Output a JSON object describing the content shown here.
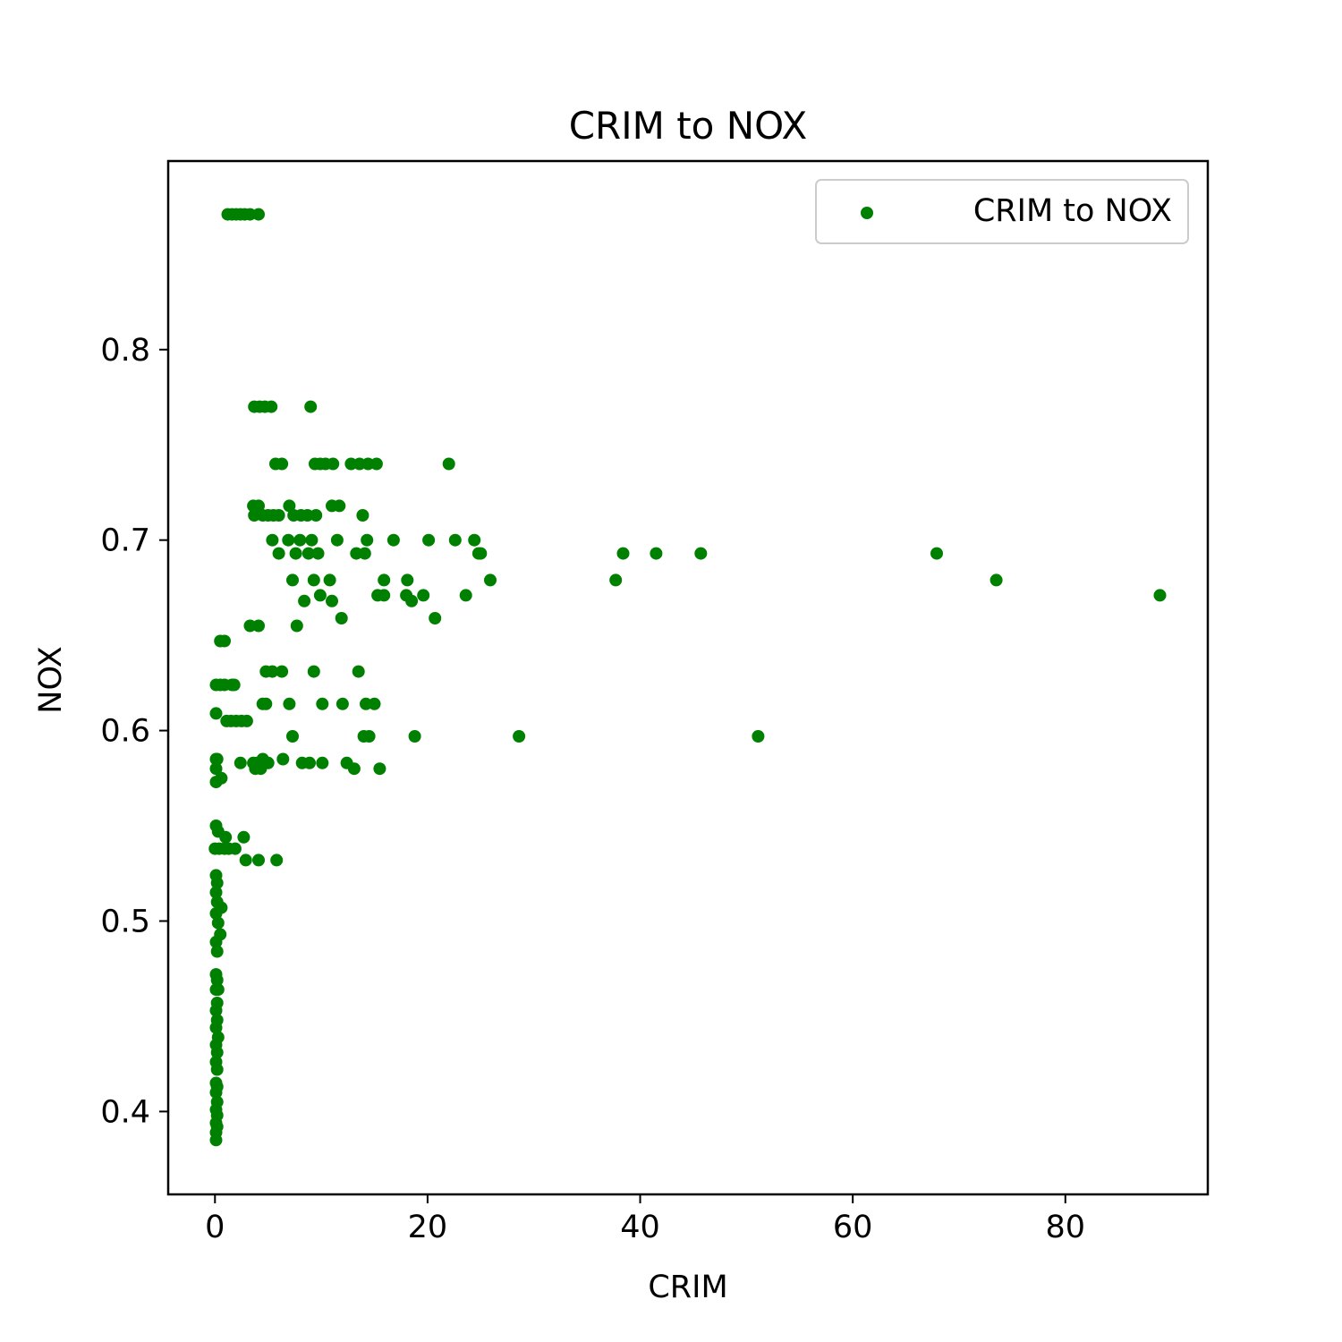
{
  "chart_data": {
    "type": "scatter",
    "title": "CRIM to NOX",
    "xlabel": "CRIM",
    "ylabel": "NOX",
    "xlim": [
      -4.4,
      93.4
    ],
    "ylim": [
      0.3565,
      0.899
    ],
    "xticks": [
      0,
      20,
      40,
      60,
      80
    ],
    "xtick_labels": [
      "0",
      "20",
      "40",
      "60",
      "80"
    ],
    "yticks": [
      0.4,
      0.5,
      0.6,
      0.7,
      0.8
    ],
    "ytick_labels": [
      "0.4",
      "0.5",
      "0.6",
      "0.7",
      "0.8"
    ],
    "grid": false,
    "legend_position": "top-right",
    "series": [
      {
        "name": "CRIM to NOX",
        "color": "#008000",
        "points": [
          [
            1.2,
            0.871
          ],
          [
            1.6,
            0.871
          ],
          [
            2.0,
            0.871
          ],
          [
            2.4,
            0.871
          ],
          [
            2.8,
            0.871
          ],
          [
            3.3,
            0.871
          ],
          [
            4.1,
            0.871
          ],
          [
            3.7,
            0.77
          ],
          [
            4.2,
            0.77
          ],
          [
            4.7,
            0.77
          ],
          [
            5.3,
            0.77
          ],
          [
            9.0,
            0.77
          ],
          [
            5.7,
            0.74
          ],
          [
            6.3,
            0.74
          ],
          [
            9.4,
            0.74
          ],
          [
            9.9,
            0.74
          ],
          [
            10.4,
            0.74
          ],
          [
            11.1,
            0.74
          ],
          [
            12.8,
            0.74
          ],
          [
            13.6,
            0.74
          ],
          [
            14.4,
            0.74
          ],
          [
            15.2,
            0.74
          ],
          [
            22.0,
            0.74
          ],
          [
            3.6,
            0.718
          ],
          [
            4.1,
            0.718
          ],
          [
            7.0,
            0.718
          ],
          [
            11.0,
            0.718
          ],
          [
            11.7,
            0.718
          ],
          [
            3.7,
            0.713
          ],
          [
            4.5,
            0.713
          ],
          [
            5.0,
            0.713
          ],
          [
            5.5,
            0.713
          ],
          [
            6.0,
            0.713
          ],
          [
            7.4,
            0.713
          ],
          [
            8.1,
            0.713
          ],
          [
            8.7,
            0.713
          ],
          [
            9.5,
            0.713
          ],
          [
            13.9,
            0.713
          ],
          [
            5.4,
            0.7
          ],
          [
            6.9,
            0.7
          ],
          [
            8.0,
            0.7
          ],
          [
            9.1,
            0.7
          ],
          [
            11.5,
            0.7
          ],
          [
            14.3,
            0.7
          ],
          [
            16.8,
            0.7
          ],
          [
            20.1,
            0.7
          ],
          [
            22.6,
            0.7
          ],
          [
            24.4,
            0.7
          ],
          [
            6.0,
            0.693
          ],
          [
            7.6,
            0.693
          ],
          [
            8.8,
            0.693
          ],
          [
            9.7,
            0.693
          ],
          [
            13.3,
            0.693
          ],
          [
            14.1,
            0.693
          ],
          [
            24.8,
            0.693
          ],
          [
            25.0,
            0.693
          ],
          [
            38.4,
            0.693
          ],
          [
            41.5,
            0.693
          ],
          [
            45.7,
            0.693
          ],
          [
            67.9,
            0.693
          ],
          [
            7.3,
            0.679
          ],
          [
            9.3,
            0.679
          ],
          [
            10.8,
            0.679
          ],
          [
            15.9,
            0.679
          ],
          [
            18.1,
            0.679
          ],
          [
            25.9,
            0.679
          ],
          [
            37.7,
            0.679
          ],
          [
            73.5,
            0.679
          ],
          [
            9.9,
            0.671
          ],
          [
            15.3,
            0.671
          ],
          [
            15.9,
            0.671
          ],
          [
            18.0,
            0.671
          ],
          [
            19.6,
            0.671
          ],
          [
            23.6,
            0.671
          ],
          [
            88.9,
            0.671
          ],
          [
            8.4,
            0.668
          ],
          [
            11.0,
            0.668
          ],
          [
            18.5,
            0.668
          ],
          [
            11.9,
            0.659
          ],
          [
            20.7,
            0.659
          ],
          [
            3.3,
            0.655
          ],
          [
            4.1,
            0.655
          ],
          [
            7.7,
            0.655
          ],
          [
            0.5,
            0.647
          ],
          [
            0.9,
            0.647
          ],
          [
            4.8,
            0.631
          ],
          [
            5.4,
            0.631
          ],
          [
            6.3,
            0.631
          ],
          [
            9.3,
            0.631
          ],
          [
            13.5,
            0.631
          ],
          [
            0.1,
            0.624
          ],
          [
            0.5,
            0.624
          ],
          [
            0.9,
            0.624
          ],
          [
            1.6,
            0.624
          ],
          [
            1.8,
            0.624
          ],
          [
            1.1,
            0.605
          ],
          [
            1.5,
            0.605
          ],
          [
            2.0,
            0.605
          ],
          [
            2.5,
            0.605
          ],
          [
            3.0,
            0.605
          ],
          [
            0.1,
            0.609
          ],
          [
            4.5,
            0.614
          ],
          [
            4.8,
            0.614
          ],
          [
            7.0,
            0.614
          ],
          [
            10.1,
            0.614
          ],
          [
            12.0,
            0.614
          ],
          [
            14.2,
            0.614
          ],
          [
            15.0,
            0.614
          ],
          [
            7.3,
            0.597
          ],
          [
            14.0,
            0.597
          ],
          [
            14.5,
            0.597
          ],
          [
            18.8,
            0.597
          ],
          [
            28.6,
            0.597
          ],
          [
            51.1,
            0.597
          ],
          [
            0.1,
            0.585
          ],
          [
            0.2,
            0.585
          ],
          [
            2.4,
            0.583
          ],
          [
            3.6,
            0.583
          ],
          [
            4.0,
            0.583
          ],
          [
            4.5,
            0.585
          ],
          [
            5.0,
            0.583
          ],
          [
            6.4,
            0.585
          ],
          [
            8.2,
            0.583
          ],
          [
            8.9,
            0.583
          ],
          [
            10.1,
            0.583
          ],
          [
            12.4,
            0.583
          ],
          [
            0.1,
            0.58
          ],
          [
            3.8,
            0.58
          ],
          [
            4.3,
            0.58
          ],
          [
            13.1,
            0.58
          ],
          [
            15.5,
            0.58
          ],
          [
            0.1,
            0.573
          ],
          [
            0.6,
            0.575
          ],
          [
            0.1,
            0.55
          ],
          [
            0.3,
            0.547
          ],
          [
            2.7,
            0.544
          ],
          [
            1.0,
            0.544
          ],
          [
            0.0,
            0.538
          ],
          [
            0.4,
            0.538
          ],
          [
            0.9,
            0.538
          ],
          [
            1.3,
            0.538
          ],
          [
            1.9,
            0.538
          ],
          [
            2.9,
            0.532
          ],
          [
            4.1,
            0.532
          ],
          [
            5.8,
            0.532
          ],
          [
            0.1,
            0.524
          ],
          [
            0.2,
            0.52
          ],
          [
            0.1,
            0.515
          ],
          [
            0.2,
            0.51
          ],
          [
            0.6,
            0.507
          ],
          [
            0.1,
            0.504
          ],
          [
            0.3,
            0.499
          ],
          [
            0.5,
            0.493
          ],
          [
            0.1,
            0.489
          ],
          [
            0.2,
            0.484
          ],
          [
            0.1,
            0.472
          ],
          [
            0.2,
            0.469
          ],
          [
            0.1,
            0.464
          ],
          [
            0.3,
            0.464
          ],
          [
            0.2,
            0.457
          ],
          [
            0.1,
            0.453
          ],
          [
            0.2,
            0.448
          ],
          [
            0.1,
            0.444
          ],
          [
            0.3,
            0.439
          ],
          [
            0.1,
            0.435
          ],
          [
            0.2,
            0.431
          ],
          [
            0.1,
            0.426
          ],
          [
            0.2,
            0.422
          ],
          [
            0.1,
            0.415
          ],
          [
            0.2,
            0.413
          ],
          [
            0.1,
            0.41
          ],
          [
            0.2,
            0.405
          ],
          [
            0.1,
            0.401
          ],
          [
            0.2,
            0.398
          ],
          [
            0.1,
            0.394
          ],
          [
            0.2,
            0.392
          ],
          [
            0.1,
            0.389
          ],
          [
            0.1,
            0.385
          ]
        ]
      }
    ]
  }
}
